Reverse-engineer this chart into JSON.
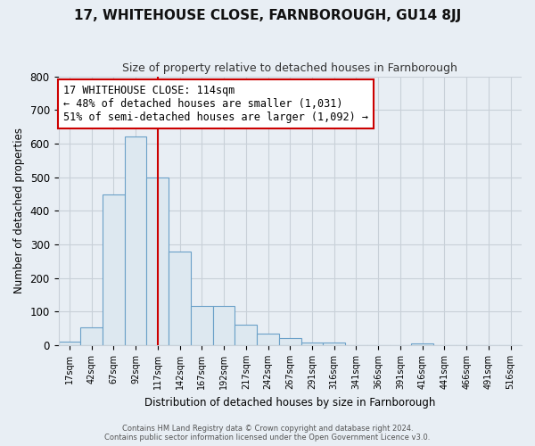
{
  "title": "17, WHITEHOUSE CLOSE, FARNBOROUGH, GU14 8JJ",
  "subtitle": "Size of property relative to detached houses in Farnborough",
  "xlabel": "Distribution of detached houses by size in Farnborough",
  "ylabel": "Number of detached properties",
  "bar_labels": [
    "17sqm",
    "42sqm",
    "67sqm",
    "92sqm",
    "117sqm",
    "142sqm",
    "167sqm",
    "192sqm",
    "217sqm",
    "242sqm",
    "267sqm",
    "291sqm",
    "316sqm",
    "341sqm",
    "366sqm",
    "391sqm",
    "416sqm",
    "441sqm",
    "466sqm",
    "491sqm",
    "516sqm"
  ],
  "bar_values": [
    10,
    52,
    448,
    620,
    500,
    280,
    118,
    118,
    60,
    35,
    22,
    8,
    8,
    0,
    0,
    0,
    5,
    0,
    0,
    0,
    0
  ],
  "bar_fill_color": "#dde8f0",
  "bar_edge_color": "#6aa0c8",
  "vline_x_index": 4,
  "vline_color": "#cc0000",
  "annotation_text": "17 WHITEHOUSE CLOSE: 114sqm\n← 48% of detached houses are smaller (1,031)\n51% of semi-detached houses are larger (1,092) →",
  "annotation_box_edge": "#cc0000",
  "ylim": [
    0,
    800
  ],
  "yticks": [
    0,
    100,
    200,
    300,
    400,
    500,
    600,
    700,
    800
  ],
  "footer1": "Contains HM Land Registry data © Crown copyright and database right 2024.",
  "footer2": "Contains public sector information licensed under the Open Government Licence v3.0.",
  "bg_color": "#e8eef4",
  "plot_bg_color": "#e8eef4",
  "grid_color": "#c8d0d8",
  "title_fontsize": 11,
  "subtitle_fontsize": 9,
  "annotation_fontsize": 8.5
}
